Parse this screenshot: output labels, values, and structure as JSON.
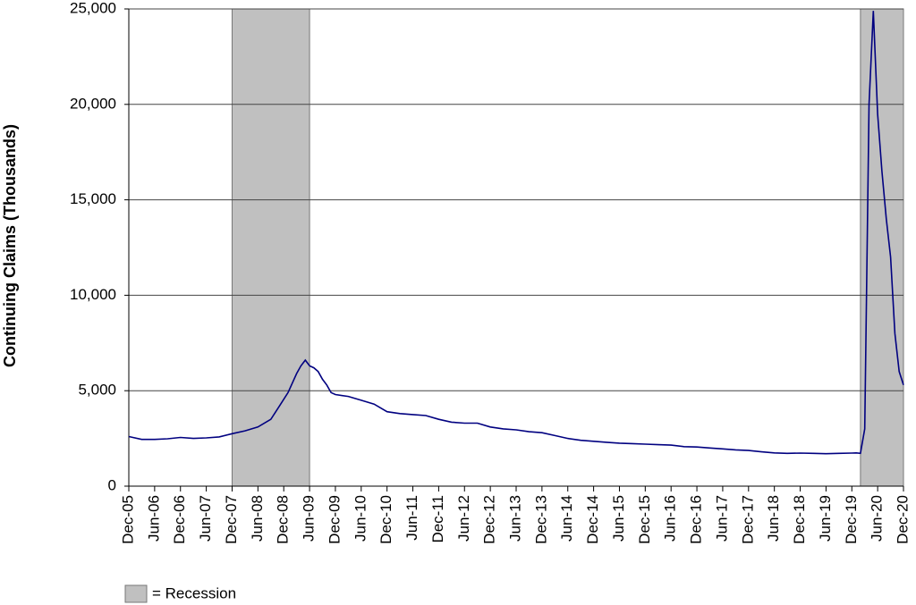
{
  "chart_data": {
    "type": "line",
    "y_label": "Continuing Claims (Thousands)",
    "color": "#000080",
    "recession_color": "#c0c0c0",
    "legend_label": "= Recession",
    "recessions": [
      {
        "start": "2007-12",
        "end": "2009-06"
      },
      {
        "start": "2020-02",
        "end": "2020-12"
      }
    ],
    "xlim": [
      "2005-12",
      "2020-12"
    ],
    "xticks": [
      {
        "value": "2005-12",
        "label": "Dec-05"
      },
      {
        "value": "2006-06",
        "label": "Jun-06"
      },
      {
        "value": "2006-12",
        "label": "Dec-06"
      },
      {
        "value": "2007-06",
        "label": "Jun-07"
      },
      {
        "value": "2007-12",
        "label": "Dec-07"
      },
      {
        "value": "2008-06",
        "label": "Jun-08"
      },
      {
        "value": "2008-12",
        "label": "Dec-08"
      },
      {
        "value": "2009-06",
        "label": "Jun-09"
      },
      {
        "value": "2009-12",
        "label": "Dec-09"
      },
      {
        "value": "2010-06",
        "label": "Jun-10"
      },
      {
        "value": "2010-12",
        "label": "Dec-10"
      },
      {
        "value": "2011-06",
        "label": "Jun-11"
      },
      {
        "value": "2011-12",
        "label": "Dec-11"
      },
      {
        "value": "2012-06",
        "label": "Jun-12"
      },
      {
        "value": "2012-12",
        "label": "Dec-12"
      },
      {
        "value": "2013-06",
        "label": "Jun-13"
      },
      {
        "value": "2013-12",
        "label": "Dec-13"
      },
      {
        "value": "2014-06",
        "label": "Jun-14"
      },
      {
        "value": "2014-12",
        "label": "Dec-14"
      },
      {
        "value": "2015-06",
        "label": "Jun-15"
      },
      {
        "value": "2015-12",
        "label": "Dec-15"
      },
      {
        "value": "2016-06",
        "label": "Jun-16"
      },
      {
        "value": "2016-12",
        "label": "Dec-16"
      },
      {
        "value": "2017-06",
        "label": "Jun-17"
      },
      {
        "value": "2017-12",
        "label": "Dec-17"
      },
      {
        "value": "2018-06",
        "label": "Jun-18"
      },
      {
        "value": "2018-12",
        "label": "Dec-18"
      },
      {
        "value": "2019-06",
        "label": "Jun-19"
      },
      {
        "value": "2019-12",
        "label": "Dec-19"
      },
      {
        "value": "2020-06",
        "label": "Jun-20"
      },
      {
        "value": "2020-12",
        "label": "Dec-20"
      }
    ],
    "ylim": [
      0,
      25000
    ],
    "yticks": [
      0,
      {
        "value": 5000,
        "label": "5,000"
      },
      {
        "value": 10000,
        "label": "10,000"
      },
      {
        "value": 15000,
        "label": "15,000"
      },
      {
        "value": 20000,
        "label": "20,000"
      },
      {
        "value": 25000,
        "label": "25,000"
      }
    ],
    "grid": true,
    "x": [
      "2005-12",
      "2006-03",
      "2006-06",
      "2006-09",
      "2006-12",
      "2007-03",
      "2007-06",
      "2007-09",
      "2007-12",
      "2008-03",
      "2008-06",
      "2008-09",
      "2008-11",
      "2009-01",
      "2009-03",
      "2009-04",
      "2009-05",
      "2009-06",
      "2009-07",
      "2009-08",
      "2009-09",
      "2009-10",
      "2009-11",
      "2009-12",
      "2010-03",
      "2010-06",
      "2010-09",
      "2010-12",
      "2011-03",
      "2011-06",
      "2011-09",
      "2011-12",
      "2012-03",
      "2012-06",
      "2012-09",
      "2012-12",
      "2013-03",
      "2013-06",
      "2013-09",
      "2013-12",
      "2014-03",
      "2014-06",
      "2014-09",
      "2014-12",
      "2015-03",
      "2015-06",
      "2015-09",
      "2015-12",
      "2016-03",
      "2016-06",
      "2016-09",
      "2016-12",
      "2017-03",
      "2017-06",
      "2017-09",
      "2017-12",
      "2018-03",
      "2018-06",
      "2018-09",
      "2018-12",
      "2019-03",
      "2019-06",
      "2019-09",
      "2019-12",
      "2020-01",
      "2020-02",
      "2020-03",
      "2020-04",
      "2020-05",
      "2020-06",
      "2020-07",
      "2020-08",
      "2020-09",
      "2020-10",
      "2020-11",
      "2020-12"
    ],
    "values": [
      2600,
      2450,
      2450,
      2480,
      2550,
      2500,
      2530,
      2580,
      2750,
      2900,
      3100,
      3500,
      4200,
      4900,
      5900,
      6300,
      6600,
      6300,
      6200,
      6000,
      5600,
      5300,
      4900,
      4800,
      4700,
      4500,
      4300,
      3900,
      3800,
      3750,
      3700,
      3500,
      3350,
      3300,
      3300,
      3100,
      3000,
      2950,
      2850,
      2800,
      2650,
      2500,
      2400,
      2350,
      2300,
      2250,
      2230,
      2200,
      2170,
      2150,
      2070,
      2050,
      2000,
      1950,
      1900,
      1870,
      1800,
      1740,
      1720,
      1730,
      1720,
      1700,
      1720,
      1730,
      1740,
      1720,
      3000,
      20000,
      24900,
      19500,
      16500,
      14000,
      12000,
      8000,
      6000,
      5300
    ]
  }
}
